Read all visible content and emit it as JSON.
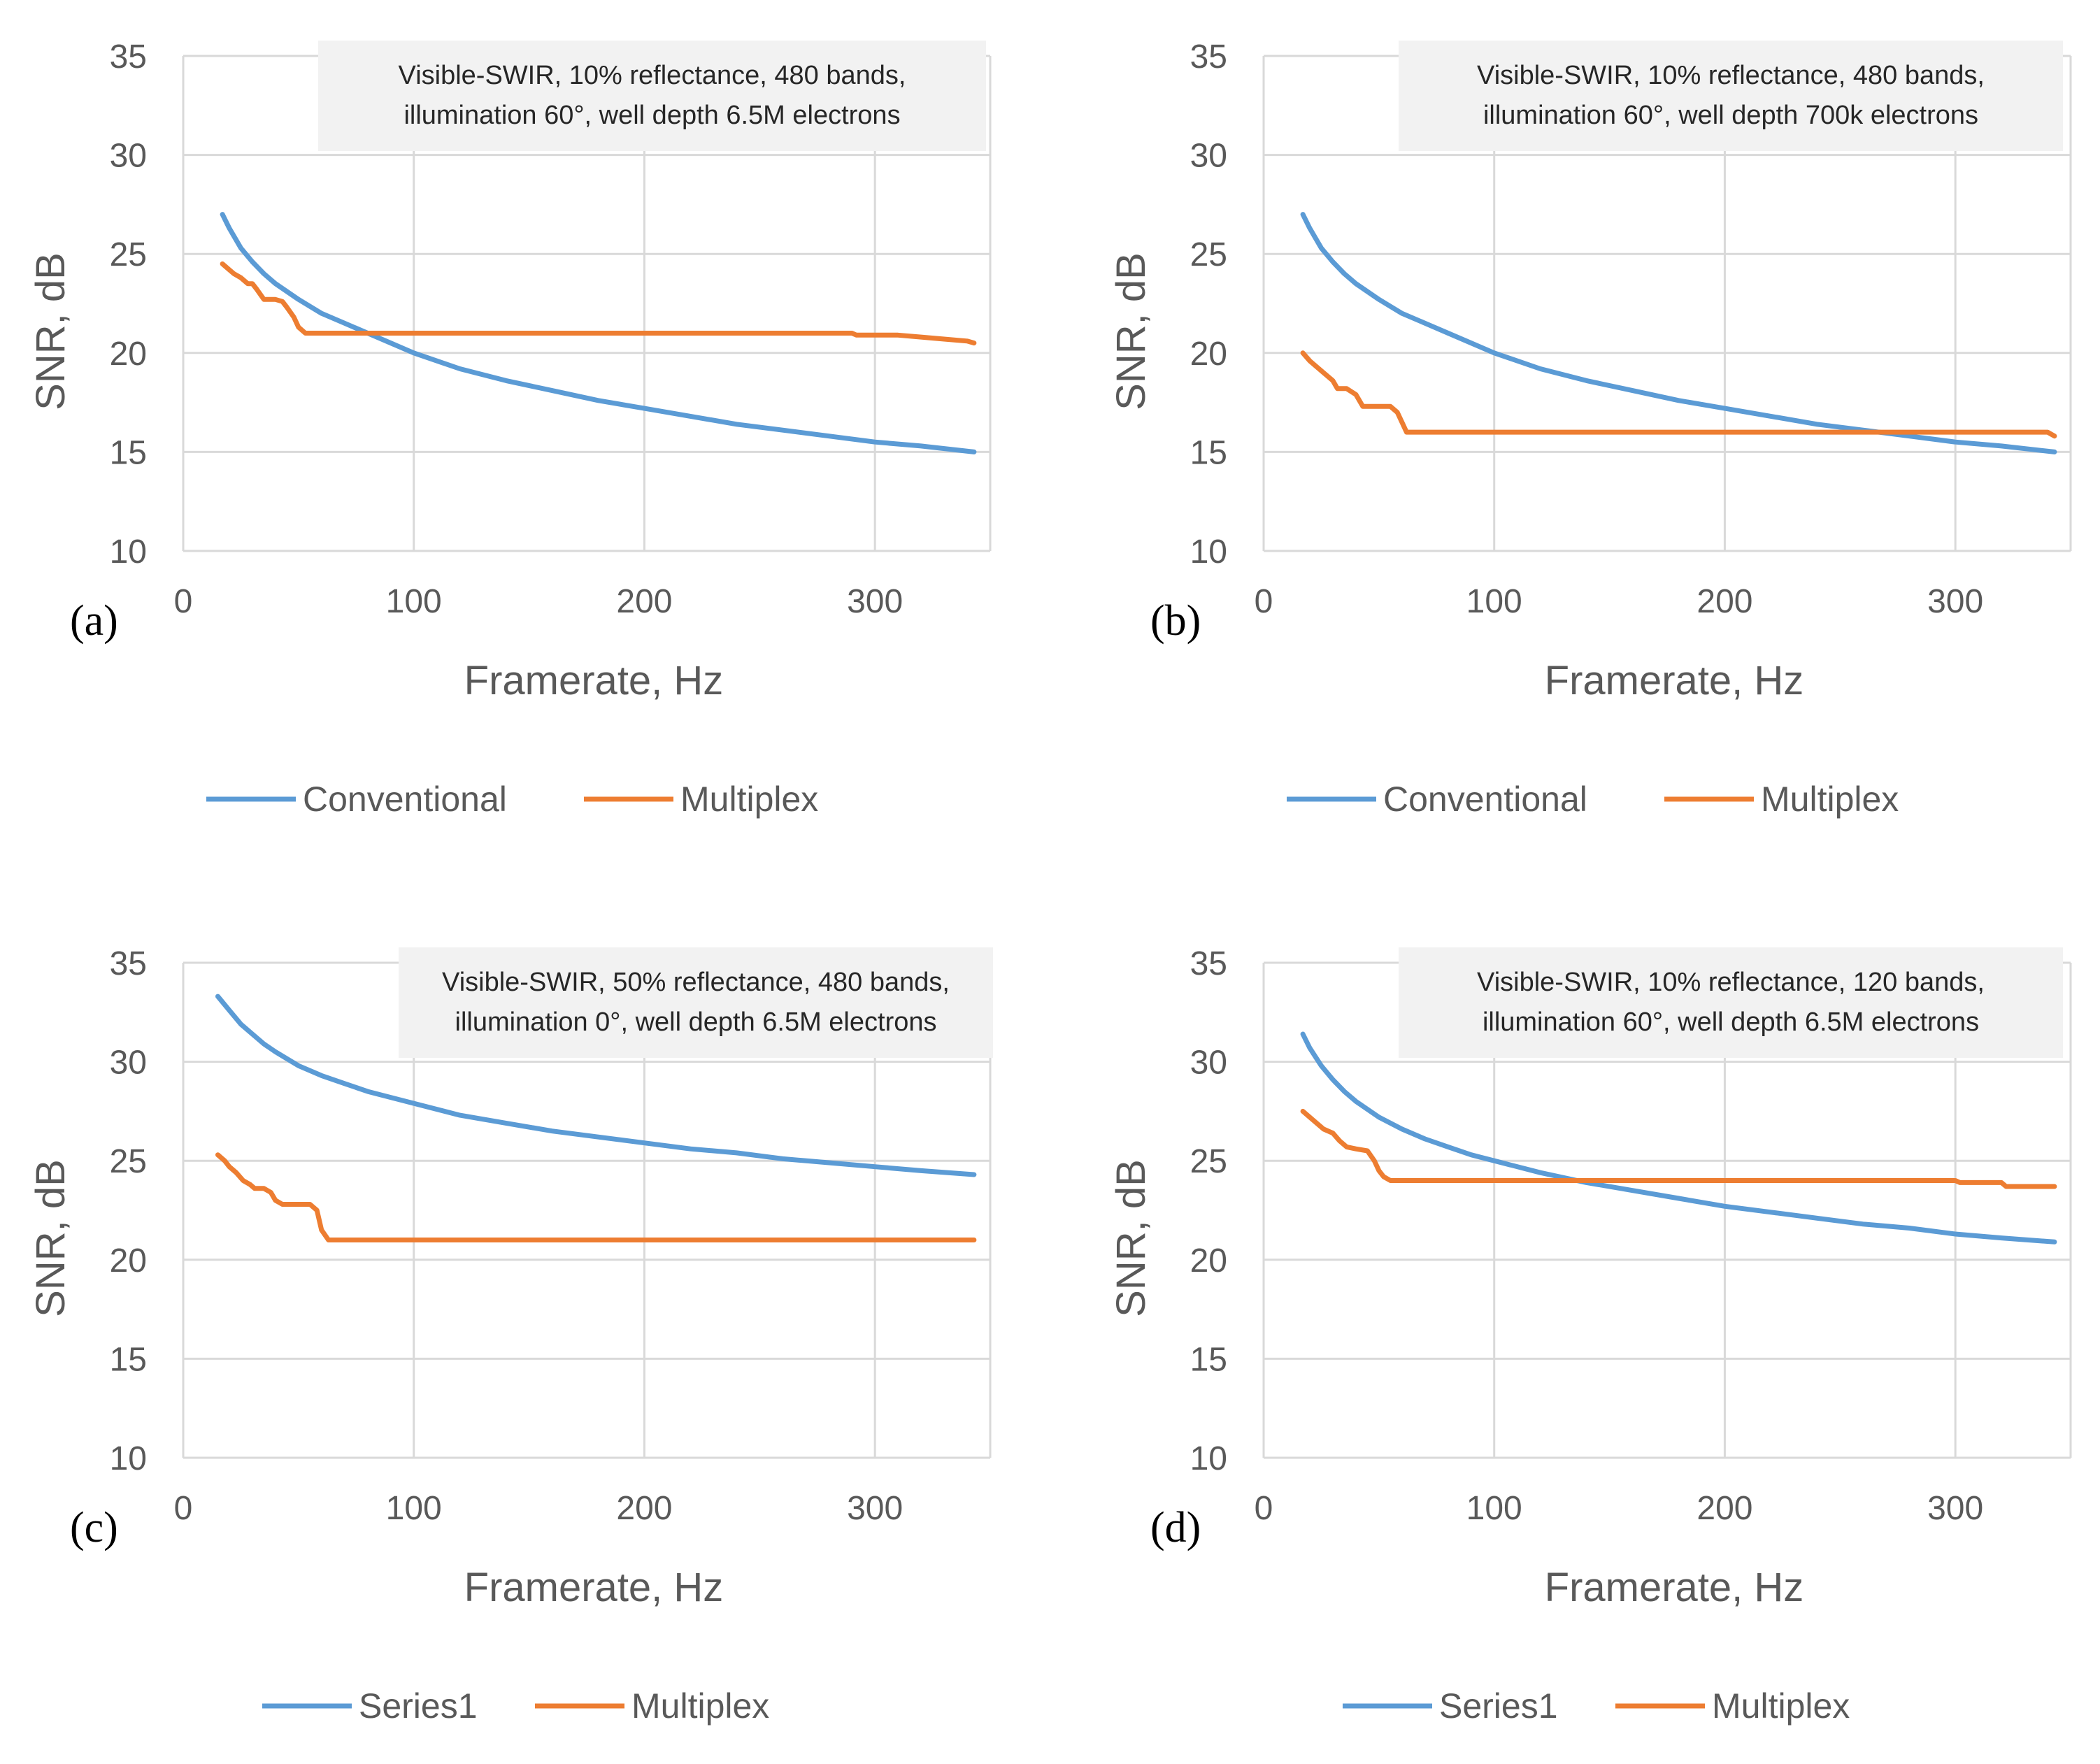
{
  "figure": {
    "panel_count": 4
  },
  "colors": {
    "conventional": "#5B9BD5",
    "multiplex": "#ED7D31",
    "grid": "#D9D9D9",
    "annotation_bg": "#F2F2F2"
  },
  "chart_data": [
    {
      "type": "line",
      "panel_label": "(a)",
      "annotation": [
        "Visible-SWIR, 10% reflectance, 480 bands,",
        "illumination 60°, well depth 6.5M electrons"
      ],
      "xlabel": "Framerate, Hz",
      "ylabel": "SNR, dB",
      "xlim": [
        0,
        350
      ],
      "ylim": [
        10,
        35
      ],
      "xticks": [
        0,
        100,
        200,
        300
      ],
      "yticks": [
        10,
        15,
        20,
        25,
        30,
        35
      ],
      "grid": true,
      "legend_position": "bottom",
      "series": [
        {
          "name": "Conventional",
          "color": "#5B9BD5",
          "x": [
            17,
            20,
            25,
            30,
            35,
            40,
            50,
            60,
            70,
            80,
            90,
            100,
            120,
            140,
            160,
            180,
            200,
            220,
            240,
            260,
            280,
            300,
            320,
            343
          ],
          "y": [
            27,
            26.3,
            25.3,
            24.6,
            24,
            23.5,
            22.7,
            22,
            21.5,
            21,
            20.5,
            20,
            19.2,
            18.6,
            18.1,
            17.6,
            17.2,
            16.8,
            16.4,
            16.1,
            15.8,
            15.5,
            15.3,
            15.0
          ]
        },
        {
          "name": "Multiplex",
          "color": "#ED7D31",
          "x": [
            17,
            20,
            22,
            25,
            28,
            30,
            32,
            35,
            40,
            43,
            45,
            48,
            50,
            53,
            100,
            200,
            290,
            292,
            310,
            320,
            330,
            340,
            343
          ],
          "y": [
            24.5,
            24.2,
            24,
            23.8,
            23.5,
            23.5,
            23.2,
            22.7,
            22.7,
            22.6,
            22.3,
            21.8,
            21.3,
            21.0,
            21.0,
            21.0,
            21.0,
            20.9,
            20.9,
            20.8,
            20.7,
            20.6,
            20.5
          ]
        }
      ]
    },
    {
      "type": "line",
      "panel_label": "(b)",
      "annotation": [
        "Visible-SWIR, 10% reflectance, 480 bands,",
        "illumination 60°, well depth 700k electrons"
      ],
      "xlabel": "Framerate, Hz",
      "ylabel": "SNR, dB",
      "xlim": [
        0,
        350
      ],
      "ylim": [
        10,
        35
      ],
      "xticks": [
        0,
        100,
        200,
        300
      ],
      "yticks": [
        10,
        15,
        20,
        25,
        30,
        35
      ],
      "grid": true,
      "legend_position": "bottom",
      "series": [
        {
          "name": "Conventional",
          "color": "#5B9BD5",
          "x": [
            17,
            20,
            25,
            30,
            35,
            40,
            50,
            60,
            70,
            80,
            90,
            100,
            120,
            140,
            160,
            180,
            200,
            220,
            240,
            260,
            280,
            300,
            320,
            343
          ],
          "y": [
            27,
            26.3,
            25.3,
            24.6,
            24,
            23.5,
            22.7,
            22,
            21.5,
            21,
            20.5,
            20,
            19.2,
            18.6,
            18.1,
            17.6,
            17.2,
            16.8,
            16.4,
            16.1,
            15.8,
            15.5,
            15.3,
            15.0
          ]
        },
        {
          "name": "Multiplex",
          "color": "#ED7D31",
          "x": [
            17,
            20,
            23,
            26,
            30,
            32,
            36,
            40,
            43,
            47,
            55,
            58,
            60,
            62,
            100,
            200,
            300,
            340,
            343
          ],
          "y": [
            20,
            19.6,
            19.3,
            19.0,
            18.6,
            18.2,
            18.2,
            17.9,
            17.3,
            17.3,
            17.3,
            17.0,
            16.5,
            16.0,
            16.0,
            16.0,
            16.0,
            16.0,
            15.8
          ]
        }
      ]
    },
    {
      "type": "line",
      "panel_label": "(c)",
      "annotation": [
        "Visible-SWIR, 50% reflectance, 480 bands,",
        "illumination 0°, well depth 6.5M electrons"
      ],
      "xlabel": "Framerate, Hz",
      "ylabel": "SNR, dB",
      "xlim": [
        0,
        350
      ],
      "ylim": [
        10,
        35
      ],
      "xticks": [
        0,
        100,
        200,
        300
      ],
      "yticks": [
        10,
        15,
        20,
        25,
        30,
        35
      ],
      "grid": true,
      "legend_position": "bottom",
      "series": [
        {
          "name": "Series1",
          "color": "#5B9BD5",
          "x": [
            15,
            20,
            25,
            30,
            35,
            40,
            50,
            60,
            70,
            80,
            90,
            100,
            120,
            140,
            160,
            180,
            200,
            220,
            240,
            260,
            280,
            300,
            320,
            343
          ],
          "y": [
            33.3,
            32.6,
            31.9,
            31.4,
            30.9,
            30.5,
            29.8,
            29.3,
            28.9,
            28.5,
            28.2,
            27.9,
            27.3,
            26.9,
            26.5,
            26.2,
            25.9,
            25.6,
            25.4,
            25.1,
            24.9,
            24.7,
            24.5,
            24.3
          ]
        },
        {
          "name": "Multiplex",
          "color": "#ED7D31",
          "x": [
            15,
            18,
            20,
            23,
            26,
            29,
            31,
            35,
            38,
            40,
            43,
            47,
            55,
            58,
            60,
            63,
            100,
            200,
            300,
            343
          ],
          "y": [
            25.3,
            25.0,
            24.7,
            24.4,
            24.0,
            23.8,
            23.6,
            23.6,
            23.4,
            23.0,
            22.8,
            22.8,
            22.8,
            22.5,
            21.5,
            21.0,
            21.0,
            21.0,
            21.0,
            21.0
          ]
        }
      ]
    },
    {
      "type": "line",
      "panel_label": "(d)",
      "annotation": [
        "Visible-SWIR, 10% reflectance, 120 bands,",
        "illumination 60°, well depth 6.5M electrons"
      ],
      "xlabel": "Framerate, Hz",
      "ylabel": "SNR, dB",
      "xlim": [
        0,
        350
      ],
      "ylim": [
        10,
        35
      ],
      "xticks": [
        0,
        100,
        200,
        300
      ],
      "yticks": [
        10,
        15,
        20,
        25,
        30,
        35
      ],
      "grid": true,
      "legend_position": "bottom",
      "series": [
        {
          "name": "Series1",
          "color": "#5B9BD5",
          "x": [
            17,
            20,
            25,
            30,
            35,
            40,
            50,
            60,
            70,
            80,
            90,
            100,
            120,
            140,
            160,
            180,
            200,
            220,
            240,
            260,
            280,
            300,
            320,
            343
          ],
          "y": [
            31.4,
            30.7,
            29.8,
            29.1,
            28.5,
            28.0,
            27.2,
            26.6,
            26.1,
            25.7,
            25.3,
            25.0,
            24.4,
            23.9,
            23.5,
            23.1,
            22.7,
            22.4,
            22.1,
            21.8,
            21.6,
            21.3,
            21.1,
            20.9
          ]
        },
        {
          "name": "Multiplex",
          "color": "#ED7D31",
          "x": [
            17,
            20,
            23,
            26,
            30,
            33,
            36,
            40,
            45,
            48,
            50,
            52,
            55,
            100,
            200,
            300,
            302,
            320,
            322,
            343
          ],
          "y": [
            27.5,
            27.2,
            26.9,
            26.6,
            26.4,
            26.0,
            25.7,
            25.6,
            25.5,
            25.0,
            24.5,
            24.2,
            24.0,
            24.0,
            24.0,
            24.0,
            23.9,
            23.9,
            23.7,
            23.7
          ]
        }
      ]
    }
  ]
}
